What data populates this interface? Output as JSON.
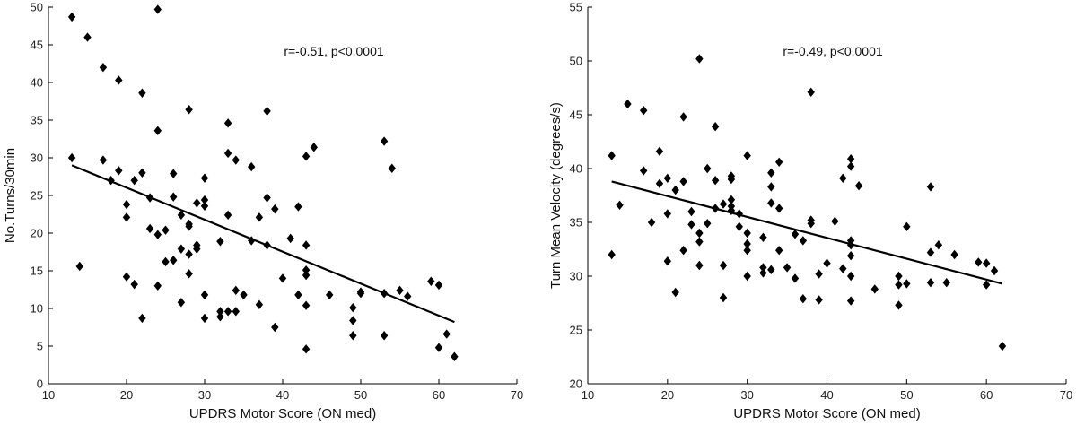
{
  "colors": {
    "marker": "#000000",
    "axis": "#000000",
    "text": "#222222",
    "background": "#ffffff"
  },
  "chart_data": [
    {
      "type": "scatter",
      "title": "",
      "xlabel": "UPDRS Motor Score (ON med)",
      "ylabel": "No.Turns/30min",
      "annotation": "r=-0.51, p<0.0001",
      "xlim": [
        10,
        70
      ],
      "ylim": [
        0,
        50
      ],
      "xticks": [
        10,
        20,
        30,
        40,
        50,
        60,
        70
      ],
      "yticks": [
        0,
        5,
        10,
        15,
        20,
        25,
        30,
        35,
        40,
        45,
        50
      ],
      "grid": false,
      "fit_line": {
        "x": [
          13,
          62
        ],
        "y": [
          29.0,
          8.2
        ]
      },
      "points": [
        [
          13,
          48.7
        ],
        [
          13,
          30.0
        ],
        [
          14,
          15.6
        ],
        [
          15,
          46.0
        ],
        [
          17,
          42.0
        ],
        [
          17,
          29.7
        ],
        [
          18,
          27.0
        ],
        [
          19,
          40.3
        ],
        [
          19,
          28.3
        ],
        [
          20,
          23.8
        ],
        [
          20,
          22.1
        ],
        [
          20,
          14.2
        ],
        [
          21,
          27.0
        ],
        [
          21,
          13.2
        ],
        [
          22,
          38.6
        ],
        [
          22,
          28.0
        ],
        [
          22,
          8.7
        ],
        [
          23,
          24.7
        ],
        [
          23,
          20.6
        ],
        [
          24,
          49.7
        ],
        [
          24,
          33.6
        ],
        [
          24,
          19.8
        ],
        [
          24,
          13.0
        ],
        [
          25,
          20.4
        ],
        [
          25,
          16.2
        ],
        [
          26,
          27.9
        ],
        [
          26,
          24.8
        ],
        [
          26,
          16.4
        ],
        [
          27,
          22.4
        ],
        [
          27,
          17.9
        ],
        [
          27,
          10.8
        ],
        [
          28,
          36.4
        ],
        [
          28,
          21.2
        ],
        [
          28,
          20.9
        ],
        [
          28,
          17.2
        ],
        [
          28,
          14.6
        ],
        [
          29,
          24.0
        ],
        [
          29,
          18.4
        ],
        [
          29,
          17.9
        ],
        [
          30,
          27.3
        ],
        [
          30,
          24.4
        ],
        [
          30,
          23.6
        ],
        [
          30,
          11.8
        ],
        [
          30,
          8.7
        ],
        [
          32,
          18.9
        ],
        [
          32,
          9.6
        ],
        [
          32,
          8.9
        ],
        [
          33,
          34.6
        ],
        [
          33,
          30.6
        ],
        [
          33,
          22.4
        ],
        [
          33,
          9.6
        ],
        [
          34,
          29.7
        ],
        [
          34,
          12.4
        ],
        [
          34,
          9.6
        ],
        [
          35,
          11.8
        ],
        [
          36,
          28.8
        ],
        [
          36,
          19.0
        ],
        [
          37,
          22.1
        ],
        [
          37,
          10.5
        ],
        [
          38,
          36.2
        ],
        [
          38,
          24.7
        ],
        [
          38,
          18.4
        ],
        [
          39,
          23.2
        ],
        [
          39,
          7.5
        ],
        [
          40,
          14.0
        ],
        [
          41,
          19.3
        ],
        [
          42,
          23.5
        ],
        [
          42,
          11.8
        ],
        [
          43,
          30.2
        ],
        [
          43,
          18.4
        ],
        [
          43,
          15.1
        ],
        [
          43,
          14.4
        ],
        [
          43,
          10.4
        ],
        [
          43,
          4.6
        ],
        [
          44,
          31.4
        ],
        [
          46,
          11.8
        ],
        [
          49,
          10.1
        ],
        [
          49,
          8.4
        ],
        [
          49,
          6.4
        ],
        [
          50,
          12.2
        ],
        [
          50,
          12.0
        ],
        [
          53,
          32.2
        ],
        [
          53,
          12.0
        ],
        [
          53,
          6.4
        ],
        [
          54,
          28.6
        ],
        [
          55,
          12.4
        ],
        [
          56,
          11.6
        ],
        [
          59,
          13.6
        ],
        [
          60,
          13.1
        ],
        [
          60,
          4.8
        ],
        [
          61,
          6.6
        ],
        [
          62,
          3.6
        ]
      ]
    },
    {
      "type": "scatter",
      "title": "",
      "xlabel": "UPDRS Motor Score (ON med)",
      "ylabel": "Turn Mean Velocity (degrees/s)",
      "annotation": "r=-0.49, p<0.0001",
      "xlim": [
        10,
        70
      ],
      "ylim": [
        20,
        55
      ],
      "xticks": [
        10,
        20,
        30,
        40,
        50,
        60,
        70
      ],
      "yticks": [
        20,
        25,
        30,
        35,
        40,
        45,
        50,
        55
      ],
      "grid": false,
      "fit_line": {
        "x": [
          13,
          62
        ],
        "y": [
          38.8,
          29.3
        ]
      },
      "points": [
        [
          13,
          41.2
        ],
        [
          13,
          32.0
        ],
        [
          14,
          36.6
        ],
        [
          15,
          46.0
        ],
        [
          17,
          45.4
        ],
        [
          17,
          39.8
        ],
        [
          18,
          35.0
        ],
        [
          19,
          41.6
        ],
        [
          19,
          38.6
        ],
        [
          20,
          39.1
        ],
        [
          20,
          35.8
        ],
        [
          20,
          31.4
        ],
        [
          21,
          38.0
        ],
        [
          21,
          28.5
        ],
        [
          22,
          44.8
        ],
        [
          22,
          38.8
        ],
        [
          22,
          32.4
        ],
        [
          23,
          36.0
        ],
        [
          23,
          34.8
        ],
        [
          24,
          50.2
        ],
        [
          24,
          34.0
        ],
        [
          24,
          33.2
        ],
        [
          24,
          31.0
        ],
        [
          25,
          40.0
        ],
        [
          25,
          34.9
        ],
        [
          26,
          43.9
        ],
        [
          26,
          38.9
        ],
        [
          26,
          36.3
        ],
        [
          27,
          36.7
        ],
        [
          27,
          31.0
        ],
        [
          27,
          28.0
        ],
        [
          28,
          39.3
        ],
        [
          28,
          39.0
        ],
        [
          28,
          37.1
        ],
        [
          28,
          36.5
        ],
        [
          28,
          36.1
        ],
        [
          29,
          35.8
        ],
        [
          29,
          34.6
        ],
        [
          30,
          41.2
        ],
        [
          30,
          34.0
        ],
        [
          30,
          33.0
        ],
        [
          30,
          32.4
        ],
        [
          30,
          30.0
        ],
        [
          32,
          33.6
        ],
        [
          32,
          30.8
        ],
        [
          32,
          30.3
        ],
        [
          33,
          39.6
        ],
        [
          33,
          38.3
        ],
        [
          33,
          36.8
        ],
        [
          33,
          30.6
        ],
        [
          34,
          40.6
        ],
        [
          34,
          36.3
        ],
        [
          34,
          32.4
        ],
        [
          35,
          30.8
        ],
        [
          36,
          33.9
        ],
        [
          36,
          29.8
        ],
        [
          37,
          33.3
        ],
        [
          37,
          27.9
        ],
        [
          38,
          47.1
        ],
        [
          38,
          35.2
        ],
        [
          38,
          34.9
        ],
        [
          39,
          30.2
        ],
        [
          39,
          27.8
        ],
        [
          40,
          31.2
        ],
        [
          41,
          35.1
        ],
        [
          42,
          39.1
        ],
        [
          42,
          30.7
        ],
        [
          43,
          40.9
        ],
        [
          43,
          40.2
        ],
        [
          43,
          33.3
        ],
        [
          43,
          32.9
        ],
        [
          43,
          31.9
        ],
        [
          43,
          30.0
        ],
        [
          43,
          27.7
        ],
        [
          44,
          38.4
        ],
        [
          46,
          28.8
        ],
        [
          49,
          30.0
        ],
        [
          49,
          29.2
        ],
        [
          49,
          27.3
        ],
        [
          50,
          34.6
        ],
        [
          50,
          29.3
        ],
        [
          53,
          38.3
        ],
        [
          53,
          32.2
        ],
        [
          53,
          29.4
        ],
        [
          54,
          32.9
        ],
        [
          55,
          29.4
        ],
        [
          56,
          32.0
        ],
        [
          59,
          31.3
        ],
        [
          60,
          31.2
        ],
        [
          60,
          29.2
        ],
        [
          61,
          30.5
        ],
        [
          62,
          23.5
        ]
      ]
    }
  ]
}
